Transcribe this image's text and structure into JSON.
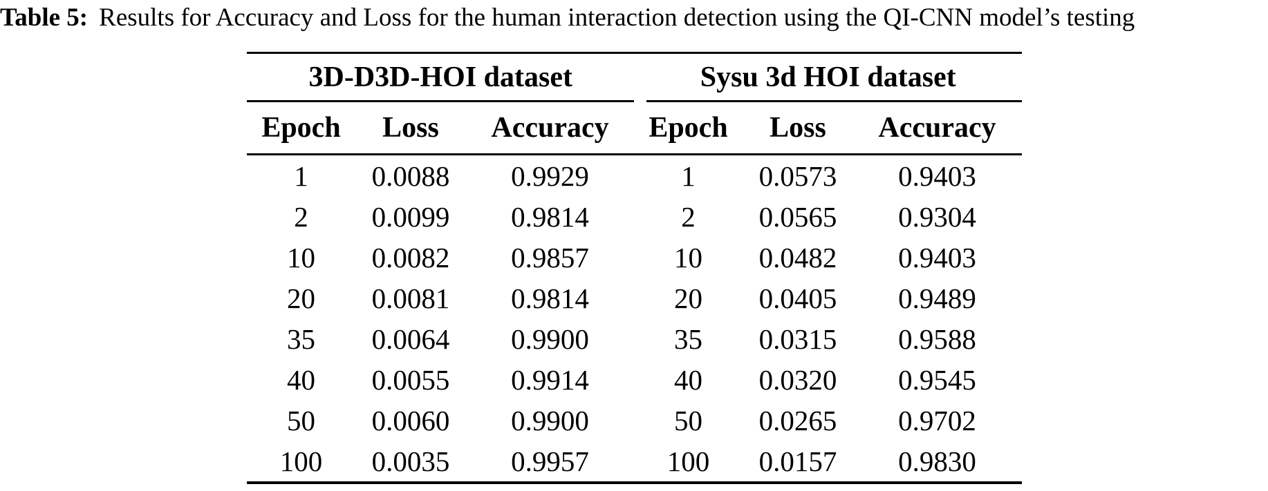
{
  "caption": {
    "label": "Table 5:",
    "text": "Results for Accuracy and Loss for the human interaction detection using the QI-CNN model’s testing"
  },
  "table": {
    "groups": [
      {
        "name": "3D-D3D-HOI dataset",
        "columns": [
          "Epoch",
          "Loss",
          "Accuracy"
        ]
      },
      {
        "name": "Sysu 3d HOI dataset",
        "columns": [
          "Epoch",
          "Loss",
          "Accuracy"
        ]
      }
    ],
    "rows": [
      [
        "1",
        "0.0088",
        "0.9929",
        "1",
        "0.0573",
        "0.9403"
      ],
      [
        "2",
        "0.0099",
        "0.9814",
        "2",
        "0.0565",
        "0.9304"
      ],
      [
        "10",
        "0.0082",
        "0.9857",
        "10",
        "0.0482",
        "0.9403"
      ],
      [
        "20",
        "0.0081",
        "0.9814",
        "20",
        "0.0405",
        "0.9489"
      ],
      [
        "35",
        "0.0064",
        "0.9900",
        "35",
        "0.0315",
        "0.9588"
      ],
      [
        "40",
        "0.0055",
        "0.9914",
        "40",
        "0.0320",
        "0.9545"
      ],
      [
        "50",
        "0.0060",
        "0.9900",
        "50",
        "0.0265",
        "0.9702"
      ],
      [
        "100",
        "0.0035",
        "0.9957",
        "100",
        "0.0157",
        "0.9830"
      ]
    ],
    "text_color": "#000000",
    "background": "#ffffff"
  }
}
